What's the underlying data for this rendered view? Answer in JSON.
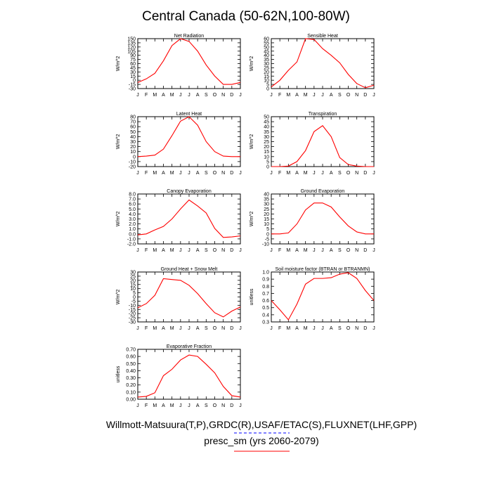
{
  "figure": {
    "title": "Central Canada (50-62N,100-80W)",
    "footer_line1": "Willmott-Matsuura(T,P),GRDC(R),USAF/ETAC(S),FLUXNET(LHF,GPP)",
    "footer_line2": "presc_sm (yrs 2060-2079)",
    "line_color": "#ff0000",
    "underline_dash_color": "#0000ff",
    "underline_solid_color": "#ff0000"
  },
  "chart_data": [
    {
      "type": "line",
      "title": "Net Radiation",
      "ylabel": "W/m^2",
      "x": [
        "J",
        "F",
        "M",
        "A",
        "M",
        "J",
        "J",
        "A",
        "S",
        "O",
        "N",
        "D",
        "J"
      ],
      "ylim": [
        -30,
        150
      ],
      "yticks": [
        "-30",
        "-15",
        "0",
        "15",
        "30",
        "45",
        "60",
        "75",
        "90",
        "105",
        "120",
        "135",
        "150"
      ],
      "series": [
        {
          "values": [
            -8,
            5,
            25,
            70,
            125,
            150,
            140,
            105,
            55,
            15,
            -15,
            -15,
            -8
          ]
        }
      ]
    },
    {
      "type": "line",
      "title": "Sensible Heat",
      "ylabel": "W/m^2",
      "x": [
        "J",
        "F",
        "M",
        "A",
        "M",
        "J",
        "J",
        "A",
        "S",
        "O",
        "N",
        "D",
        "J"
      ],
      "ylim": [
        0,
        60
      ],
      "yticks": [
        "0",
        "5",
        "10",
        "15",
        "20",
        "25",
        "30",
        "35",
        "40",
        "45",
        "50",
        "55",
        "60"
      ],
      "series": [
        {
          "values": [
            2,
            10,
            22,
            32,
            60,
            59,
            48,
            40,
            31,
            17,
            6,
            1,
            4
          ]
        }
      ]
    },
    {
      "type": "line",
      "title": "Latent Heat",
      "ylabel": "W/m^2",
      "x": [
        "J",
        "F",
        "M",
        "A",
        "M",
        "J",
        "J",
        "A",
        "S",
        "O",
        "N",
        "D",
        "J"
      ],
      "ylim": [
        -20,
        80
      ],
      "yticks": [
        "-20",
        "-10",
        "0",
        "10",
        "20",
        "30",
        "40",
        "50",
        "60",
        "70",
        "80"
      ],
      "series": [
        {
          "values": [
            0,
            1,
            3,
            15,
            42,
            71,
            80,
            63,
            30,
            10,
            1,
            0,
            0
          ]
        }
      ]
    },
    {
      "type": "line",
      "title": "Transpiration",
      "ylabel": "W/m^2",
      "x": [
        "J",
        "F",
        "M",
        "A",
        "M",
        "J",
        "J",
        "A",
        "S",
        "O",
        "N",
        "D",
        "J"
      ],
      "ylim": [
        0,
        50
      ],
      "yticks": [
        "0",
        "5",
        "10",
        "15",
        "20",
        "25",
        "30",
        "35",
        "40",
        "45",
        "50"
      ],
      "series": [
        {
          "values": [
            0,
            0,
            0.5,
            5,
            16,
            35,
            41,
            30,
            9,
            2,
            0.5,
            0,
            0
          ]
        }
      ]
    },
    {
      "type": "line",
      "title": "Canopy Evaporation",
      "ylabel": "W/m^2",
      "x": [
        "J",
        "F",
        "M",
        "A",
        "M",
        "J",
        "J",
        "A",
        "S",
        "O",
        "N",
        "D",
        "J"
      ],
      "ylim": [
        -2,
        8
      ],
      "yticks": [
        "-2.0",
        "-1.0",
        "0.0",
        "1.0",
        "2.0",
        "3.0",
        "4.0",
        "5.0",
        "6.0",
        "7.0",
        "8.0"
      ],
      "series": [
        {
          "values": [
            -0.2,
            0,
            0.8,
            1.5,
            3.0,
            5.0,
            6.8,
            5.6,
            4.2,
            1.1,
            -0.7,
            -0.6,
            -0.4
          ]
        }
      ]
    },
    {
      "type": "line",
      "title": "Ground Evaporation",
      "ylabel": "W/m^2",
      "x": [
        "J",
        "F",
        "M",
        "A",
        "M",
        "J",
        "J",
        "A",
        "S",
        "O",
        "N",
        "D",
        "J"
      ],
      "ylim": [
        -10,
        40
      ],
      "yticks": [
        "-10",
        "-5",
        "0",
        "5",
        "10",
        "15",
        "20",
        "25",
        "30",
        "35",
        "40"
      ],
      "series": [
        {
          "values": [
            0,
            0,
            1,
            10,
            24,
            31,
            31,
            27,
            17,
            8,
            2,
            0,
            0
          ]
        }
      ]
    },
    {
      "type": "line",
      "title": "Ground Heat + Snow Melt",
      "ylabel": "W/m^2",
      "x": [
        "J",
        "F",
        "M",
        "A",
        "M",
        "J",
        "J",
        "A",
        "S",
        "O",
        "N",
        "D",
        "J"
      ],
      "ylim": [
        -30,
        30
      ],
      "yticks": [
        "-30",
        "-25",
        "-20",
        "-15",
        "-10",
        "-5",
        "0",
        "5",
        "10",
        "15",
        "20",
        "25",
        "30"
      ],
      "series": [
        {
          "values": [
            -13,
            -8,
            2,
            22,
            21,
            20,
            14,
            4,
            -8,
            -19,
            -24,
            -17,
            -12
          ]
        }
      ]
    },
    {
      "type": "line",
      "title": "Soil moisture factor (BTRAN or BTRANMN)",
      "ylabel": "unitless",
      "x": [
        "J",
        "F",
        "M",
        "A",
        "M",
        "J",
        "J",
        "A",
        "S",
        "O",
        "N",
        "D",
        "J"
      ],
      "ylim": [
        0.3,
        1.0
      ],
      "yticks": [
        "0.3",
        "0.4",
        "0.5",
        "0.6",
        "0.7",
        "0.8",
        "0.9",
        "1.0"
      ],
      "series": [
        {
          "values": [
            0.6,
            0.47,
            0.33,
            0.55,
            0.83,
            0.91,
            0.91,
            0.92,
            0.97,
            0.99,
            0.91,
            0.74,
            0.6
          ]
        }
      ]
    },
    {
      "type": "line",
      "title": "Evaporative Fraction",
      "ylabel": "unitless",
      "x": [
        "J",
        "F",
        "M",
        "A",
        "M",
        "J",
        "J",
        "A",
        "S",
        "O",
        "N",
        "D",
        "J"
      ],
      "ylim": [
        0,
        0.7
      ],
      "yticks": [
        "0.00",
        "0.10",
        "0.20",
        "0.30",
        "0.40",
        "0.50",
        "0.60",
        "0.70"
      ],
      "series": [
        {
          "values": [
            0.03,
            0.04,
            0.09,
            0.33,
            0.42,
            0.55,
            0.62,
            0.6,
            0.49,
            0.37,
            0.18,
            0.05,
            0.03
          ]
        }
      ]
    }
  ]
}
